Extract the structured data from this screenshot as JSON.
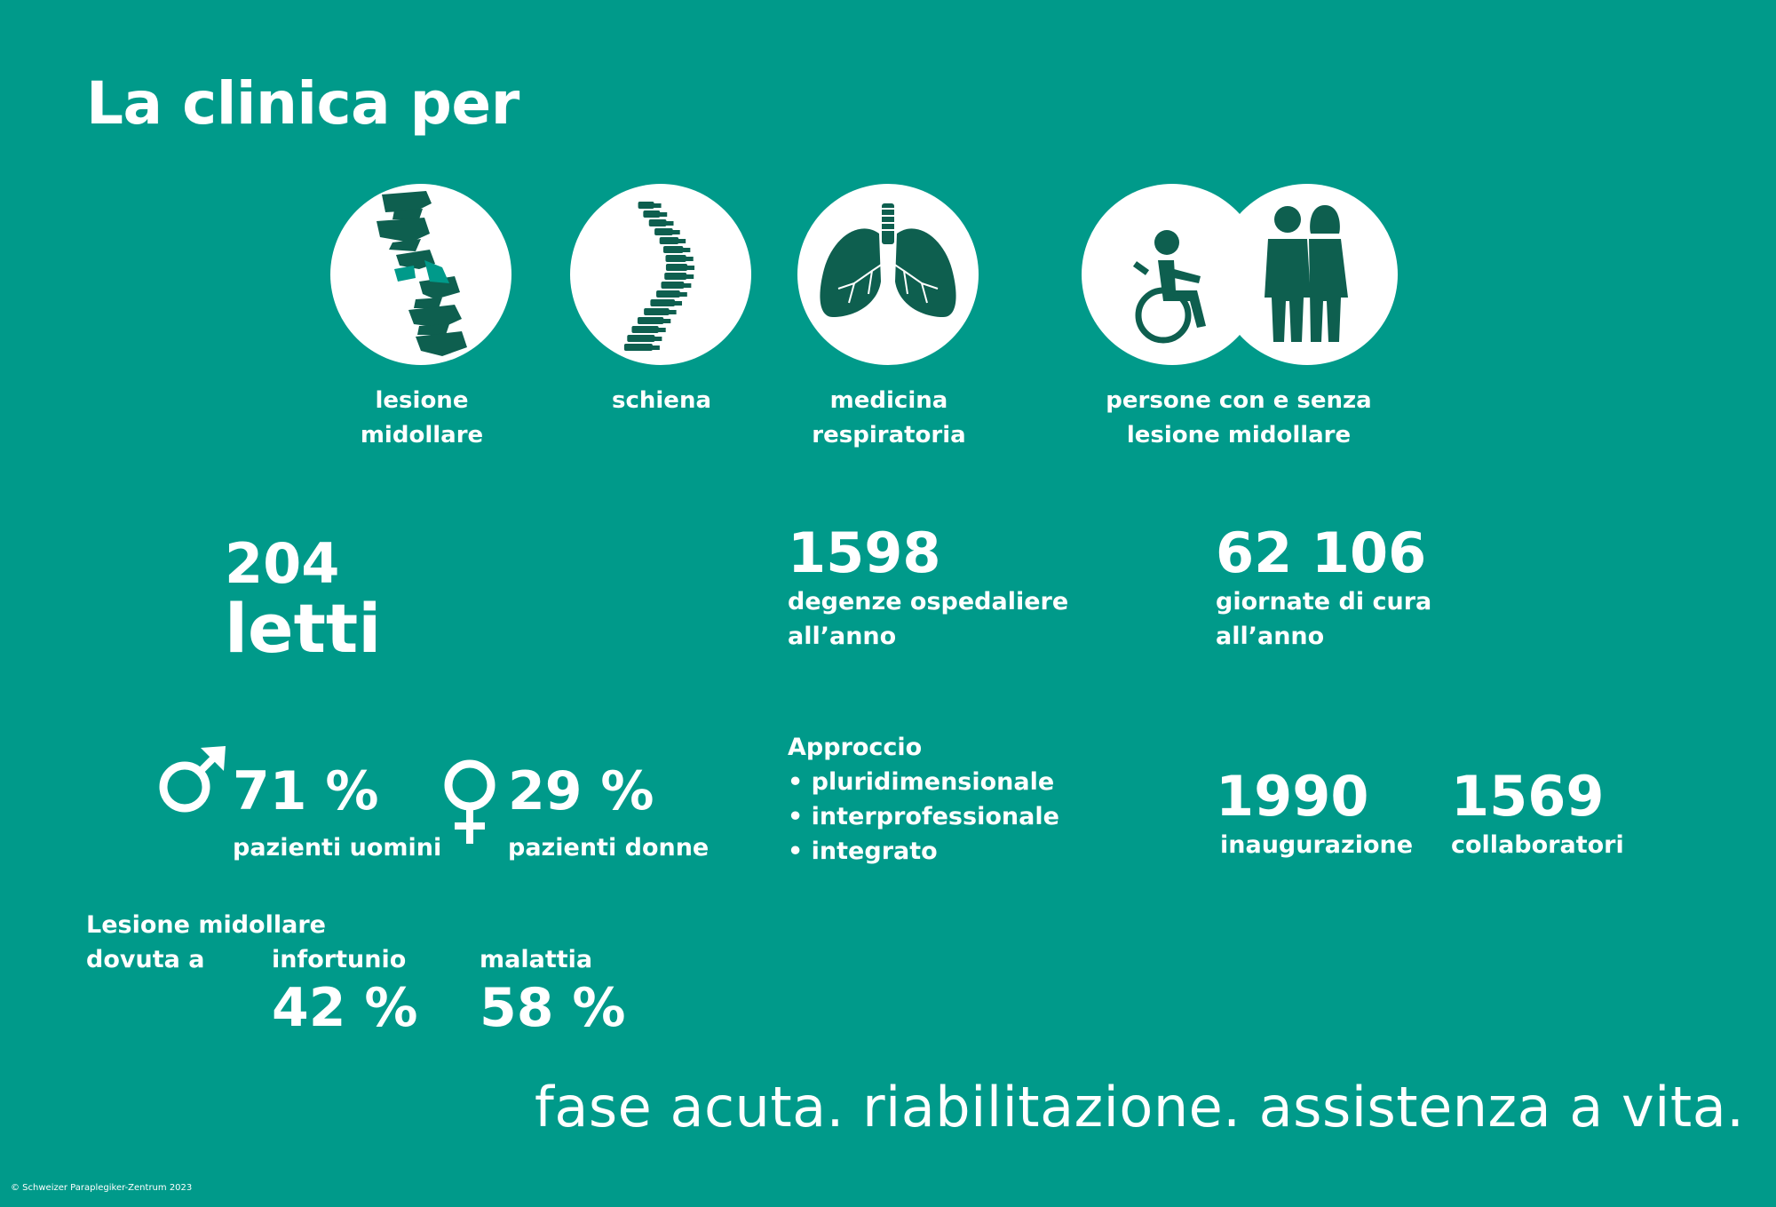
{
  "title": "La clinica per",
  "categories": [
    {
      "line1": "lesione",
      "line2": "midollare",
      "icon": "spinal-injury-icon"
    },
    {
      "line1": "schiena",
      "line2": "",
      "icon": "spine-icon"
    },
    {
      "line1": "medicina",
      "line2": "respiratoria",
      "icon": "lungs-icon"
    },
    {
      "line1": "persone con e senza",
      "line2": "lesione midollare",
      "icon": "people-wheelchair-icon"
    }
  ],
  "beds": {
    "value": "204",
    "label": "letti"
  },
  "stays": {
    "value": "1598",
    "line1": "degenze ospedaliere",
    "line2": "all’anno"
  },
  "care_days": {
    "value": "62 106",
    "line1": "giornate di cura",
    "line2": "all’anno"
  },
  "men": {
    "value": "71 %",
    "label": "pazienti uomini",
    "icon": "male-symbol-icon"
  },
  "women": {
    "value": "29 %",
    "label": "pazienti donne",
    "icon": "female-symbol-icon"
  },
  "approach": {
    "title": "Approccio",
    "items": [
      "pluridimensionale",
      "interprofessionale",
      "integrato"
    ]
  },
  "opening": {
    "value": "1990",
    "label": "inaugurazione"
  },
  "staff": {
    "value": "1569",
    "label": "collaboratori"
  },
  "cause": {
    "line1": "Lesione midollare",
    "line2": "dovuta a",
    "accident": {
      "label": "infortunio",
      "value": "42 %"
    },
    "illness": {
      "label": "malattia",
      "value": "58 %"
    }
  },
  "tagline": "fase acuta. riabilitazione. assistenza a vita.",
  "copyright": "© Schweizer Paraplegiker-Zentrum 2023",
  "colors": {
    "background": "#009A8A",
    "icon": "#0E5F4F",
    "icon_accent": "#009A8A",
    "circle": "#FFFFFF"
  }
}
